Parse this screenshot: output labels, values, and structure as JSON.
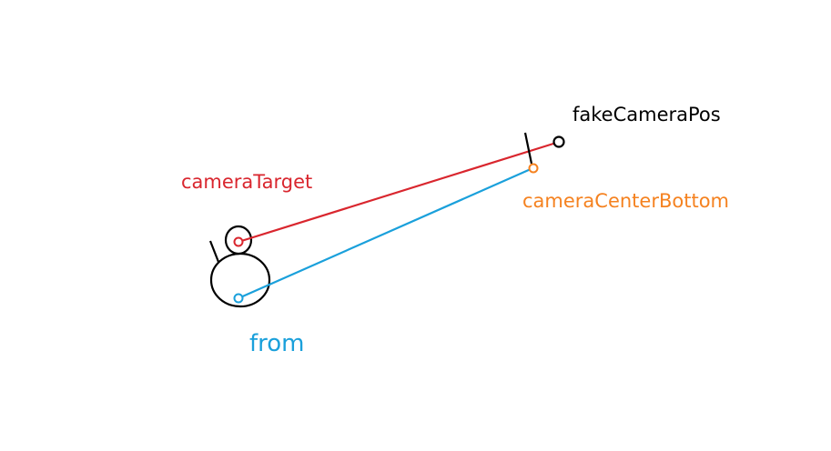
{
  "labels": {
    "fake_camera_pos": "fakeCameraPos",
    "camera_target": "cameraTarget",
    "camera_center_bottom": "cameraCenterBottom",
    "from": "from"
  },
  "colors": {
    "black": "#000000",
    "red": "#d9262e",
    "blue": "#1aa0db",
    "orange": "#f58220",
    "background": "#ffffff"
  }
}
